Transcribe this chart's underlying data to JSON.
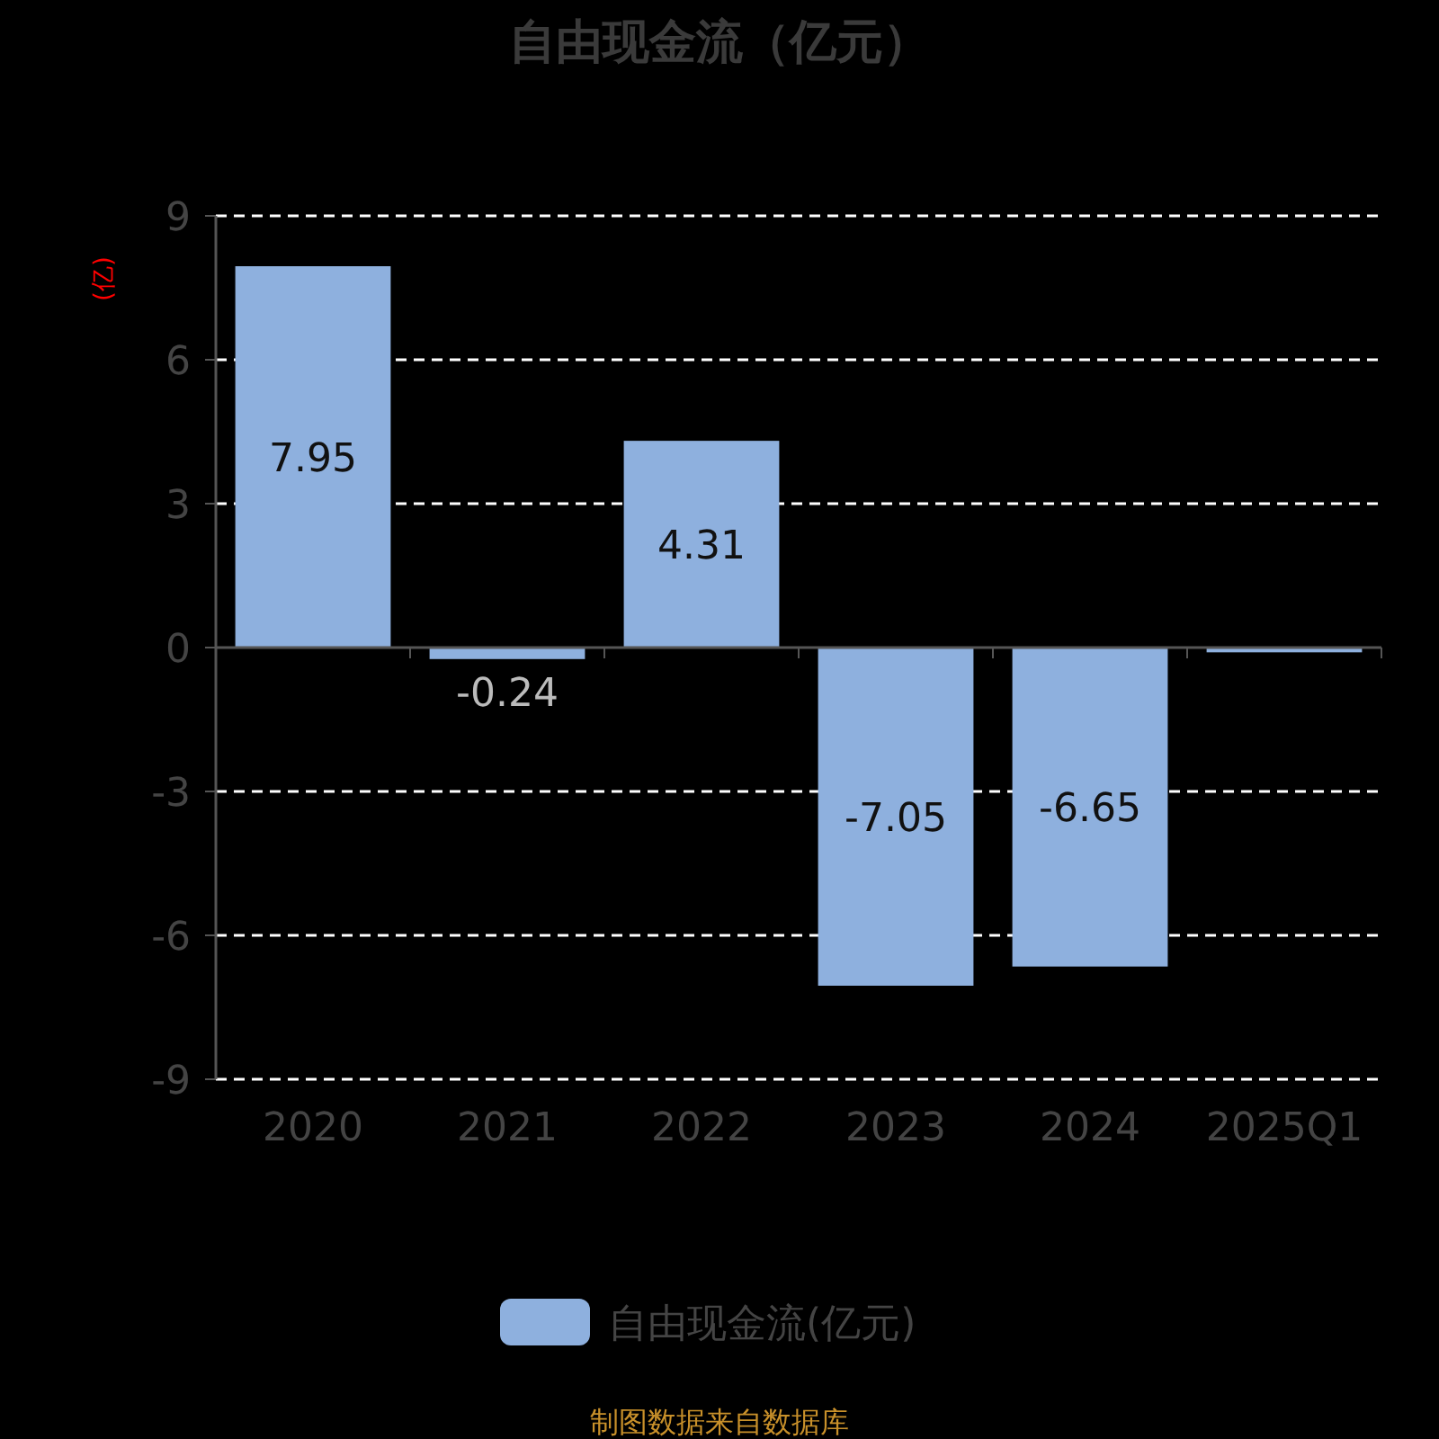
{
  "chart_data": {
    "type": "bar",
    "title": "自由现金流（亿元）",
    "ylabel": "(亿)",
    "categories": [
      "2020",
      "2021",
      "2022",
      "2023",
      "2024",
      "2025Q1"
    ],
    "series": [
      {
        "name": "自由现金流(亿元)",
        "color": "#8eb0de",
        "values": [
          7.95,
          -0.24,
          4.31,
          -7.05,
          -6.65,
          -0.1
        ],
        "value_labels": [
          "7.95",
          "-0.24",
          "4.31",
          "-7.05",
          "-6.65",
          null
        ]
      }
    ],
    "ylim": [
      -9,
      9
    ],
    "yticks": [
      -9,
      -6,
      -3,
      0,
      3,
      6,
      9
    ],
    "grid": "y",
    "legend": "bottom",
    "annotations": [
      "制图数据来自数据库"
    ]
  }
}
